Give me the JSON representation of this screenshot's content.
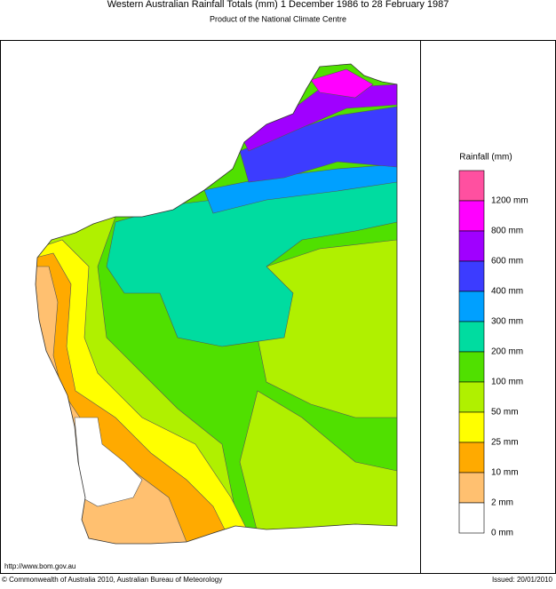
{
  "header": {
    "title": "Western Australian Rainfall Totals (mm) 1 December 1986 to 28 February 1987",
    "subtitle": "Product of the National Climate Centre"
  },
  "legend": {
    "title": "Rainfall (mm)",
    "colors": [
      "#ff50a0",
      "#ff00ff",
      "#a000ff",
      "#3c3cff",
      "#00a0ff",
      "#00dca0",
      "#50e000",
      "#b0f000",
      "#ffff00",
      "#ffaa00",
      "#ffc070",
      "#ffffff"
    ],
    "labels": [
      "1200 mm",
      "800 mm",
      "600 mm",
      "400 mm",
      "300 mm",
      "200 mm",
      "100 mm",
      "50 mm",
      "25 mm",
      "10 mm",
      "2 mm",
      "0 mm"
    ]
  },
  "footer": {
    "url": "http://www.bom.gov.au",
    "copyright": "© Commonwealth of Australia 2010, Australian Bureau of Meteorology",
    "issued": "Issued: 20/01/2010"
  }
}
